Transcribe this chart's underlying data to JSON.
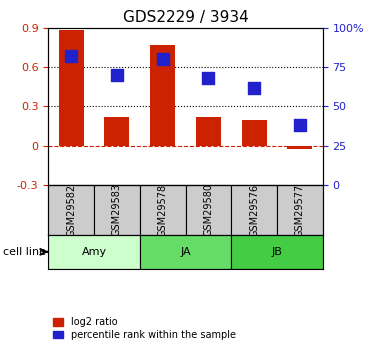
{
  "title": "GDS2229 / 3934",
  "categories": [
    "GSM29582",
    "GSM29583",
    "GSM29578",
    "GSM29580",
    "GSM29576",
    "GSM29577"
  ],
  "log2_ratio": [
    0.88,
    0.22,
    0.77,
    0.22,
    0.2,
    -0.02
  ],
  "percentile_rank": [
    82,
    70,
    80,
    68,
    62,
    38
  ],
  "cell_lines": [
    {
      "label": "Amy",
      "color": "#ccffcc",
      "span": [
        0,
        2
      ]
    },
    {
      "label": "JA",
      "color": "#66dd66",
      "span": [
        2,
        4
      ]
    },
    {
      "label": "JB",
      "color": "#44cc44",
      "span": [
        4,
        6
      ]
    }
  ],
  "bar_color": "#cc2200",
  "dot_color": "#2222cc",
  "ylim_left": [
    -0.3,
    0.9
  ],
  "ylim_right": [
    0,
    100
  ],
  "yticks_left": [
    -0.3,
    0.0,
    0.3,
    0.6,
    0.9
  ],
  "yticks_right": [
    0,
    25,
    50,
    75,
    100
  ],
  "ytick_labels_left": [
    "-0.3",
    "0",
    "0.3",
    "0.6",
    "0.9"
  ],
  "ytick_labels_right": [
    "0",
    "25",
    "50",
    "75",
    "100%"
  ],
  "hlines_dotted": [
    0.3,
    0.6
  ],
  "hline_dashed": 0.0,
  "bar_width": 0.55,
  "dot_size": 80,
  "sample_box_color": "#cccccc",
  "cell_line_label": "cell line"
}
